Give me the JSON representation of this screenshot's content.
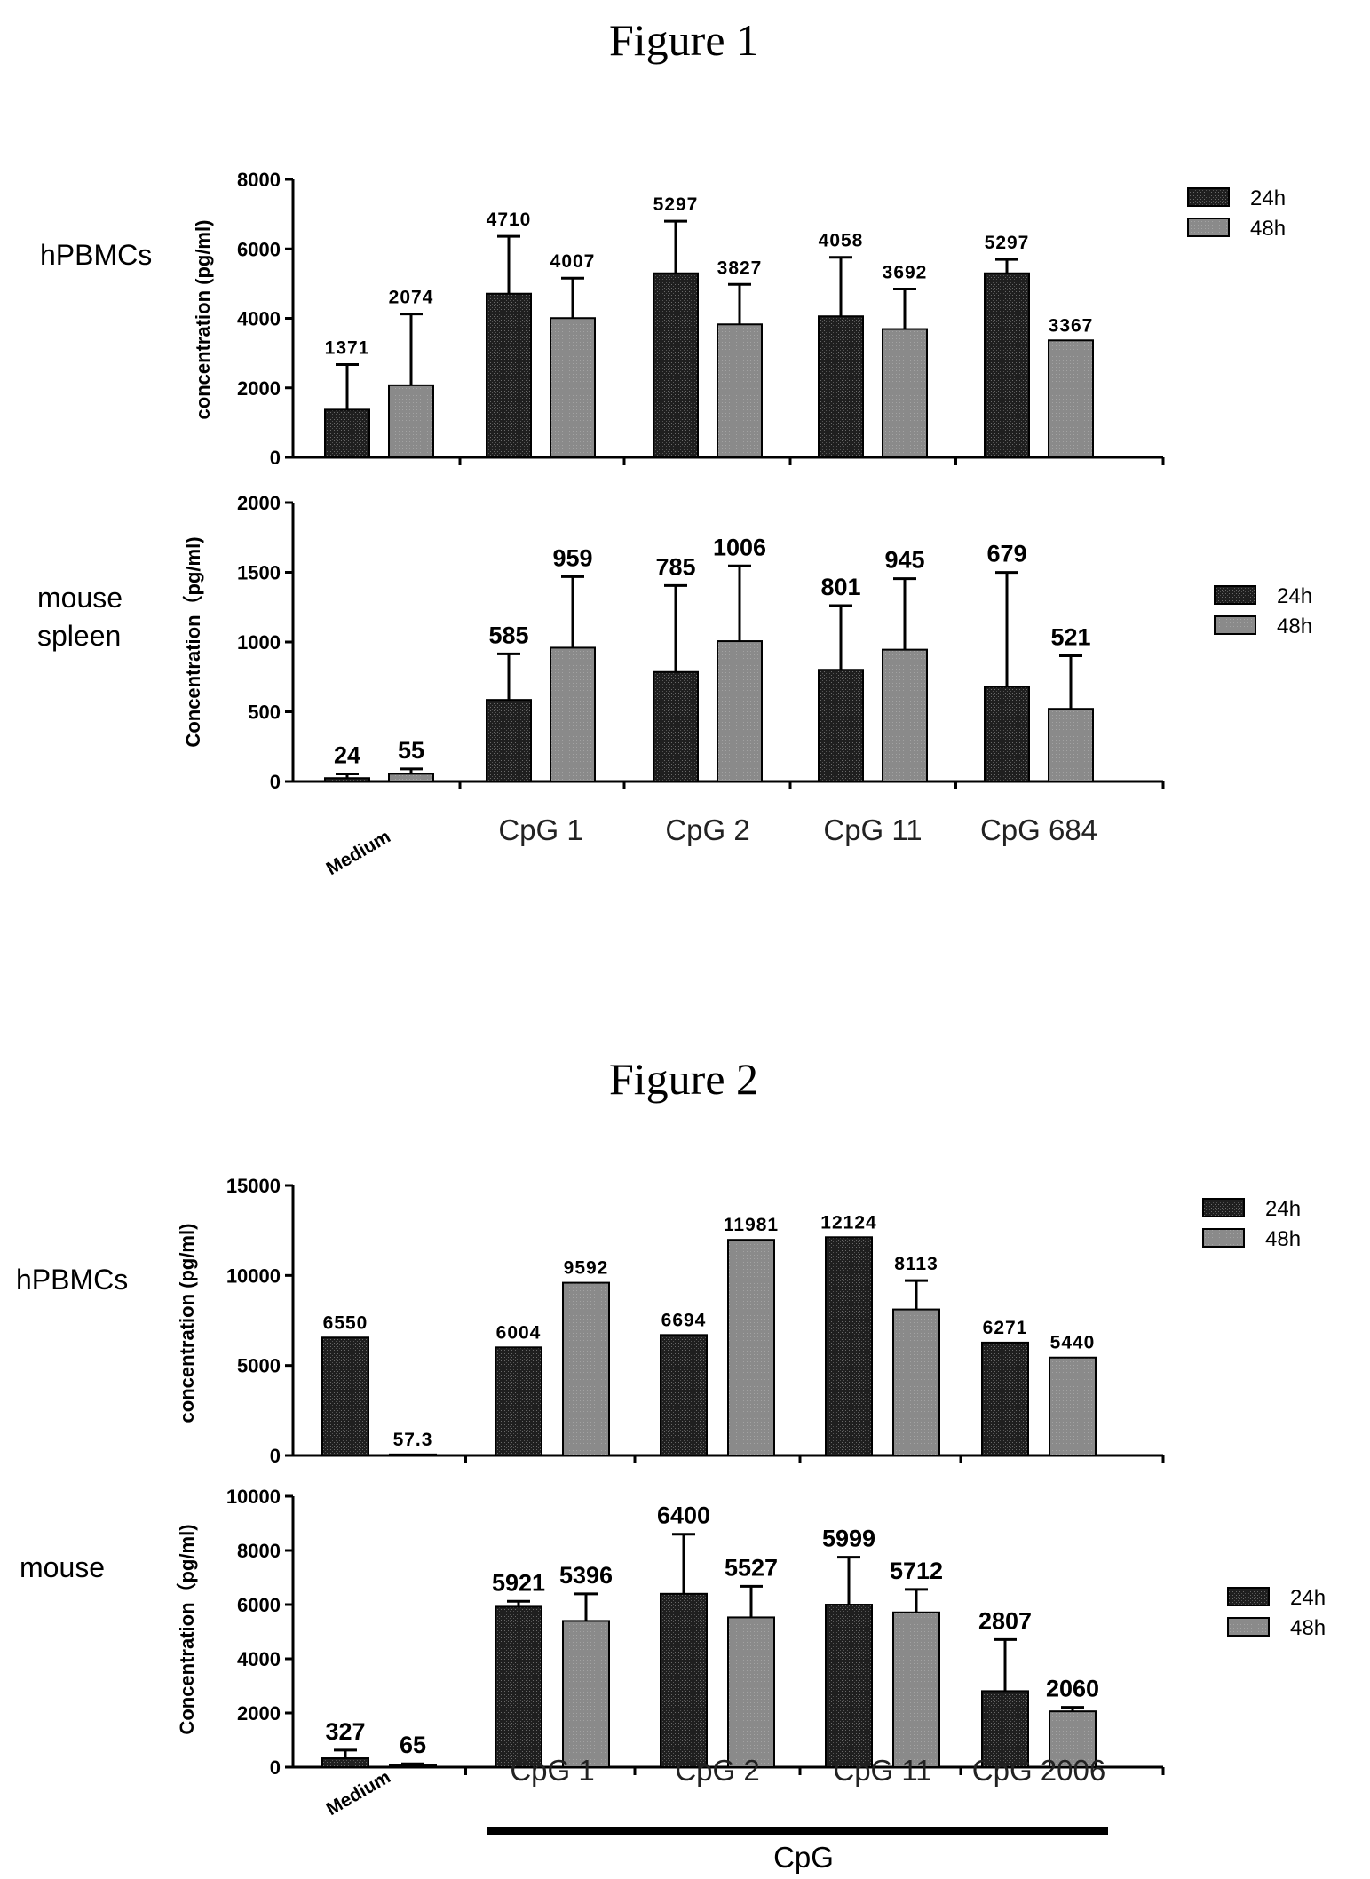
{
  "figures": [
    {
      "title": "Figure 1"
    },
    {
      "title": "Figure 2"
    }
  ],
  "colors": {
    "24h": "#1f1f1f",
    "48h": "#8a8a8a",
    "axis": "#000000"
  },
  "chart_data": [
    {
      "type": "bar",
      "figure": "Figure 1",
      "panel_label": "hPBMCs",
      "ylabel": "concentration (pg/ml)",
      "ylim": [
        0,
        8000
      ],
      "yticks": [
        "0",
        "2000",
        "4000",
        "6000",
        "8000"
      ],
      "categories": [
        "Medium",
        "CpG 1",
        "CpG 2",
        "CpG 11",
        "CpG 684"
      ],
      "series": [
        {
          "name": "24h",
          "values": [
            1371,
            4710,
            5297,
            4058,
            5297
          ],
          "errors": [
            1300,
            1650,
            1500,
            1700,
            400
          ],
          "labels": [
            "1371",
            "4710",
            "5297",
            "4058",
            "5297"
          ]
        },
        {
          "name": "48h",
          "values": [
            2074,
            4007,
            3827,
            3692,
            3367
          ],
          "errors": [
            2050,
            1150,
            1150,
            1150,
            0
          ],
          "labels": [
            "2074",
            "4007",
            "3827",
            "3692",
            "3367"
          ]
        }
      ],
      "show_category_labels": false
    },
    {
      "type": "bar",
      "figure": "Figure 1",
      "panel_label": "mouse\nspleen",
      "ylabel": "Concentration（pg/ml)",
      "ylim": [
        0,
        2000
      ],
      "yticks": [
        "0",
        "500",
        "1000",
        "1500",
        "2000"
      ],
      "categories": [
        "Medium",
        "CpG 1",
        "CpG 2",
        "CpG 11",
        "CpG 684"
      ],
      "series": [
        {
          "name": "24h",
          "values": [
            24,
            585,
            785,
            801,
            679
          ],
          "errors": [
            30,
            330,
            620,
            460,
            820
          ],
          "labels": [
            "24",
            "585",
            "785",
            "801",
            "679"
          ]
        },
        {
          "name": "48h",
          "values": [
            55,
            959,
            1006,
            945,
            521
          ],
          "errors": [
            35,
            510,
            540,
            510,
            380
          ],
          "labels": [
            "55",
            "959",
            "1006",
            "945",
            "521"
          ]
        }
      ],
      "show_category_labels": true
    },
    {
      "type": "bar",
      "figure": "Figure 2",
      "panel_label": "hPBMCs",
      "ylabel": "concentration (pg/ml)",
      "ylim": [
        0,
        15000
      ],
      "yticks": [
        "0",
        "5000",
        "10000",
        "15000"
      ],
      "categories": [
        "Medium",
        "CpG 1",
        "CpG 2",
        "CpG 11",
        "CpG 2006"
      ],
      "series": [
        {
          "name": "24h",
          "values": [
            6550,
            6004,
            6694,
            12124,
            6271
          ],
          "errors": [
            0,
            0,
            0,
            0,
            0
          ],
          "labels": [
            "6550",
            "6004",
            "6694",
            "12124",
            "6271"
          ]
        },
        {
          "name": "48h",
          "values": [
            57.3,
            9592,
            11981,
            8113,
            5440
          ],
          "errors": [
            0,
            0,
            0,
            1600,
            0
          ],
          "labels": [
            "57.3",
            "9592",
            "11981",
            "8113",
            "5440"
          ]
        }
      ],
      "show_category_labels": false
    },
    {
      "type": "bar",
      "figure": "Figure 2",
      "panel_label": "mouse",
      "ylabel": "Concentration（pg/ml)",
      "ylim": [
        0,
        10000
      ],
      "yticks": [
        "0",
        "2000",
        "4000",
        "6000",
        "8000",
        "10000"
      ],
      "categories": [
        "Medium",
        "CpG 1",
        "CpG 2",
        "CpG 11",
        "CpG 2006"
      ],
      "series": [
        {
          "name": "24h",
          "values": [
            327,
            5921,
            6400,
            5999,
            2807
          ],
          "errors": [
            300,
            200,
            2200,
            1750,
            1900
          ],
          "labels": [
            "327",
            "5921",
            "6400",
            "5999",
            "2807"
          ]
        },
        {
          "name": "48h",
          "values": [
            65,
            5396,
            5527,
            5712,
            2060
          ],
          "errors": [
            60,
            1000,
            1150,
            850,
            150
          ],
          "labels": [
            "65",
            "5396",
            "5527",
            "5712",
            "2060"
          ]
        }
      ],
      "show_category_labels": true,
      "group_label": "CpG"
    }
  ]
}
